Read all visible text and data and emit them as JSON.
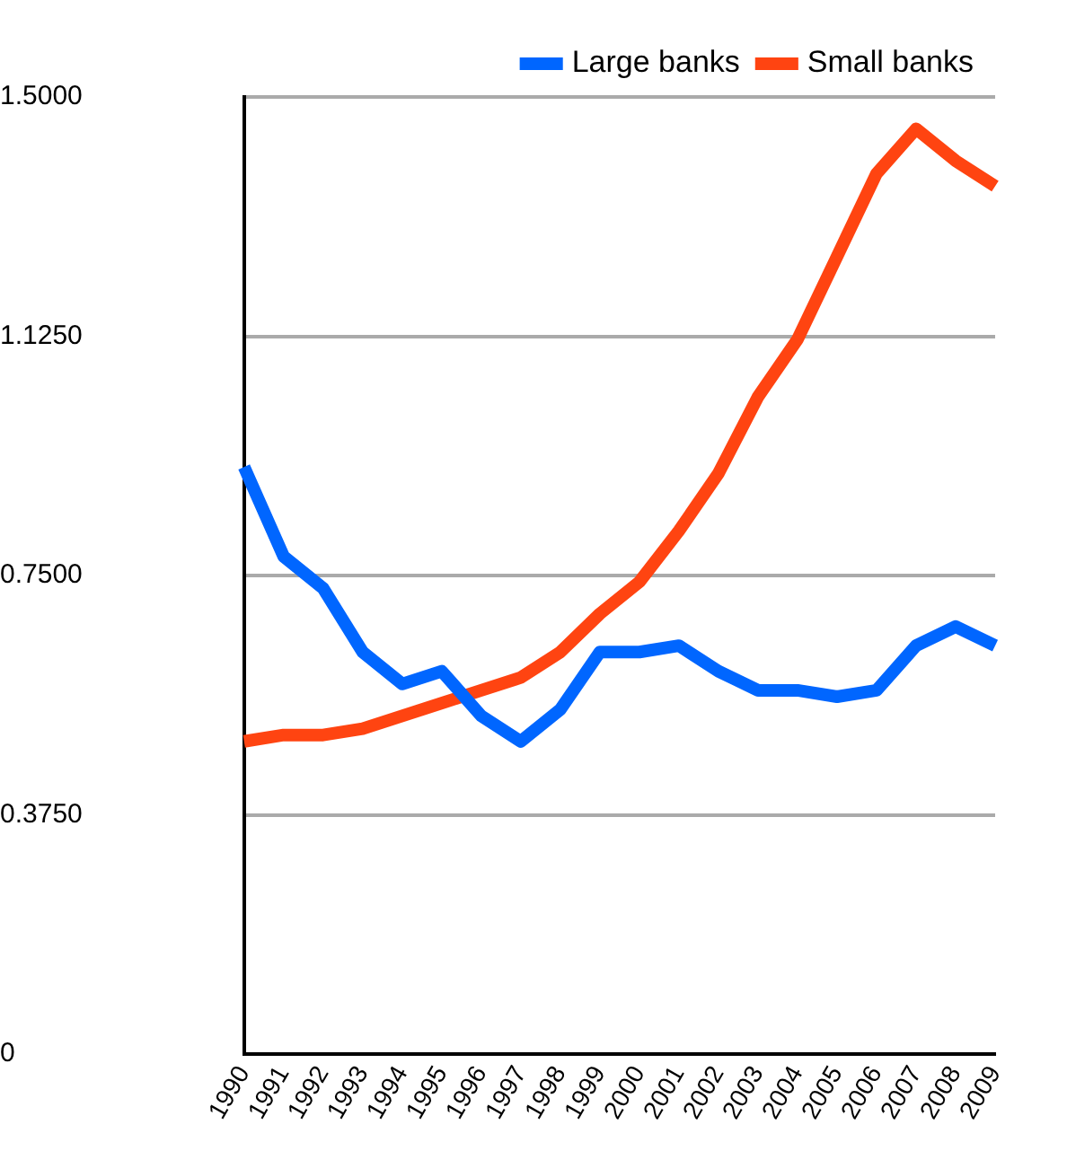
{
  "chart_data": {
    "type": "line",
    "categories": [
      "1990",
      "1991",
      "1992",
      "1993",
      "1994",
      "1995",
      "1996",
      "1997",
      "1998",
      "1999",
      "2000",
      "2001",
      "2002",
      "2003",
      "2004",
      "2005",
      "2006",
      "2007",
      "2008",
      "2009"
    ],
    "series": [
      {
        "name": "Large banks",
        "color": "#0066ff",
        "values": [
          0.92,
          0.78,
          0.73,
          0.63,
          0.58,
          0.6,
          0.53,
          0.49,
          0.54,
          0.63,
          0.63,
          0.64,
          0.6,
          0.57,
          0.57,
          0.56,
          0.57,
          0.64,
          0.67,
          0.64
        ]
      },
      {
        "name": "Small banks",
        "color": "#ff4411",
        "values": [
          0.49,
          0.5,
          0.5,
          0.51,
          0.53,
          0.55,
          0.57,
          0.59,
          0.63,
          0.69,
          0.74,
          0.82,
          0.91,
          1.03,
          1.12,
          1.25,
          1.38,
          1.45,
          1.4,
          1.36
        ]
      }
    ],
    "ylim": [
      0,
      1.5
    ],
    "yticks": [
      0,
      {
        "value": 0.375,
        "label": "0.3750"
      },
      {
        "value": 0.75,
        "label": "0.7500"
      },
      {
        "value": 1.125,
        "label": "1.1250"
      },
      {
        "value": 1.5,
        "label": "1.5000"
      }
    ],
    "grid": "y",
    "legend": "top right",
    "marker": "none",
    "line_style": "solid"
  }
}
